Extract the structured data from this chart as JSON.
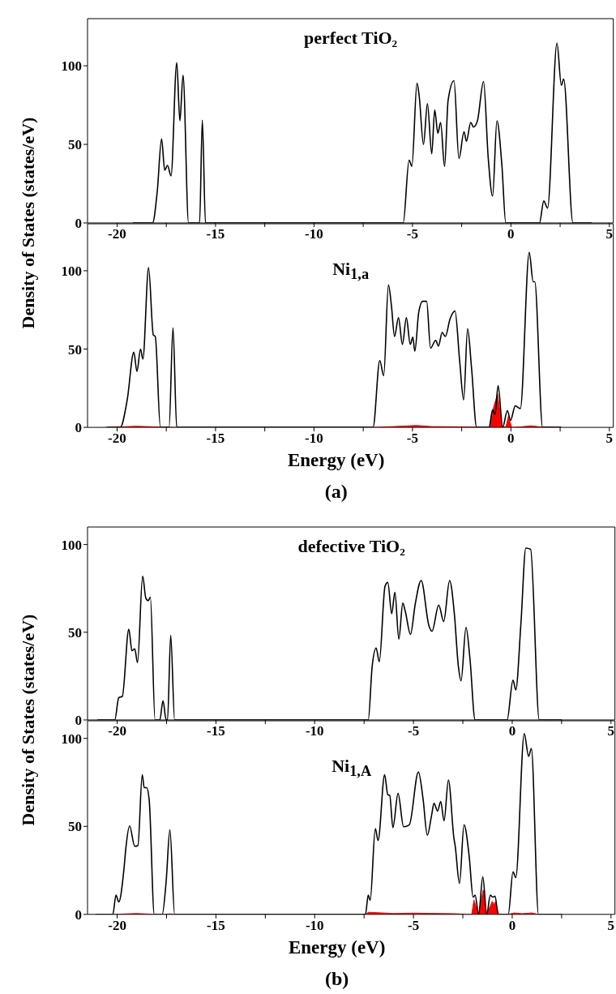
{
  "chart_data": [
    {
      "type": "line",
      "title": "perfect TiO₂",
      "ylabel": "Density of States (states/eV)",
      "xlim": [
        -21.5,
        5.2
      ],
      "xticks": [
        -20,
        {
          "value": -17.5,
          "label": null
        },
        -15,
        {
          "value": -12.5,
          "label": null
        },
        -10,
        {
          "value": -7.5,
          "label": null
        },
        -5,
        {
          "value": -2.5,
          "label": null
        },
        0,
        {
          "value": 2.5,
          "label": null
        },
        5
      ],
      "ylim": [
        0,
        130
      ],
      "yticks": [
        0,
        50,
        100
      ],
      "series": [
        {
          "type": "line",
          "color": "#000000",
          "x": [
            -19.2,
            -18.2,
            -17.96,
            -17.74,
            -17.58,
            -17.44,
            -17.26,
            -16.97,
            -16.81,
            -16.65,
            -16.37,
            -15.81,
            -15.67,
            -15.51,
            -5.47,
            -5.17,
            -5.03,
            -4.77,
            -4.66,
            -4.44,
            -4.24,
            -4.02,
            -3.87,
            -3.71,
            -3.57,
            -3.37,
            -3.19,
            -2.89,
            -2.64,
            -2.38,
            -2.26,
            -2.04,
            -1.9,
            -1.7,
            -1.39,
            -1.15,
            -0.93,
            -0.71,
            -0.46,
            -0.26,
            1.45,
            1.67,
            1.86,
            2.34,
            2.56,
            2.68,
            3.15,
            4.1
          ],
          "values": [
            0,
            0,
            20,
            53.5,
            33.6,
            36.6,
            30,
            102,
            65,
            94,
            0,
            0,
            65.4,
            0,
            0,
            40,
            36,
            89,
            81,
            50,
            76,
            44,
            72,
            57,
            64,
            36,
            78,
            90.5,
            41,
            58,
            52,
            64,
            61,
            65,
            90,
            41,
            17,
            65,
            37,
            0,
            0,
            14,
            9.5,
            114.4,
            87.6,
            91.5,
            0,
            0
          ]
        }
      ]
    },
    {
      "type": "line",
      "title": "Ni$_{1,a}$",
      "xlabel": "Energy (eV)",
      "annotations": [
        "(a)"
      ],
      "xlim": [
        -21.5,
        5.2
      ],
      "xticks": [
        -20,
        {
          "value": -17.5,
          "label": null
        },
        -15,
        {
          "value": -12.5,
          "label": null
        },
        -10,
        {
          "value": -7.5,
          "label": null
        },
        -5,
        {
          "value": -2.5,
          "label": null
        },
        0,
        {
          "value": 2.5,
          "label": null
        },
        5
      ],
      "ylim": [
        0,
        130
      ],
      "yticks": [
        0,
        50,
        100
      ],
      "series": [
        {
          "type": "area",
          "color": "#ff0000",
          "x": [
            -20.6,
            -19.0,
            -18.0,
            -17.0,
            -7.0,
            -6.0,
            -4.8,
            -4.0,
            -2.0,
            -1.09,
            -0.98,
            -0.9,
            -0.68,
            -0.5,
            -0.43,
            -0.25,
            -0.13,
            0.04,
            0.5,
            1.0,
            1.5,
            2.5
          ],
          "values": [
            0,
            0.7,
            0.3,
            0,
            0,
            0.5,
            1.2,
            0.5,
            0.3,
            0,
            7.9,
            12,
            21.3,
            5,
            0,
            0.5,
            7,
            0,
            0.3,
            1,
            0.3,
            0
          ]
        },
        {
          "type": "line",
          "color": "#000000",
          "x": [
            -20.5,
            -19.84,
            -19.48,
            -19.15,
            -18.99,
            -18.81,
            -18.69,
            -18.4,
            -18.16,
            -18.06,
            -17.8,
            -17.36,
            -17.16,
            -16.97,
            -7.0,
            -6.66,
            -6.46,
            -6.22,
            -6.07,
            -5.91,
            -5.71,
            -5.51,
            -5.31,
            -5.11,
            -4.98,
            -4.88,
            -4.68,
            -4.48,
            -4.28,
            -4.08,
            -3.82,
            -3.68,
            -3.49,
            -3.33,
            -3.09,
            -2.84,
            -2.6,
            -2.4,
            -2.2,
            -2.0,
            -1.74,
            -1.11,
            -0.93,
            -0.81,
            -0.65,
            -0.42,
            -0.18,
            -0.02,
            0.22,
            0.48,
            0.93,
            1.13,
            1.21,
            1.61,
            2.56
          ],
          "values": [
            0,
            0,
            18,
            48,
            35.7,
            50,
            43.6,
            102,
            59,
            58,
            0,
            0,
            63.6,
            0,
            0,
            42.6,
            33,
            91,
            78,
            58,
            70,
            53,
            70,
            53,
            57.6,
            48.6,
            73.6,
            80.5,
            80.5,
            50.6,
            55.6,
            51.9,
            60.6,
            58,
            69.3,
            74.3,
            42,
            17.5,
            63,
            38,
            0,
            0,
            11.2,
            8.2,
            26.7,
            0,
            10.7,
            4.5,
            13.7,
            12,
            111.7,
            93,
            93,
            0,
            0
          ]
        }
      ]
    },
    {
      "type": "line",
      "title": "defective TiO₂",
      "ylabel": "Density of States (states/eV)",
      "xlim": [
        -21.5,
        5.2
      ],
      "xticks": [
        -20,
        {
          "value": -17.5,
          "label": null
        },
        -15,
        {
          "value": -12.5,
          "label": null
        },
        -10,
        {
          "value": -7.5,
          "label": null
        },
        -5,
        {
          "value": -2.5,
          "label": null
        },
        0,
        {
          "value": 2.5,
          "label": null
        },
        5
      ],
      "ylim": [
        0,
        110
      ],
      "yticks": [
        0,
        50,
        100
      ],
      "series": [
        {
          "type": "line",
          "color": "#000000",
          "x": [
            -21.0,
            -20.12,
            -19.92,
            -19.74,
            -19.41,
            -19.25,
            -19.11,
            -18.97,
            -18.71,
            -18.55,
            -18.43,
            -18.32,
            -18.08,
            -17.84,
            -17.68,
            -17.52,
            -17.45,
            -17.29,
            -17.09,
            -7.29,
            -7.09,
            -6.89,
            -6.73,
            -6.44,
            -6.3,
            -6.1,
            -5.94,
            -5.74,
            -5.54,
            -5.41,
            -5.15,
            -4.91,
            -4.61,
            -4.22,
            -4.06,
            -3.72,
            -3.47,
            -3.17,
            -2.93,
            -2.73,
            -2.59,
            -2.34,
            -2.14,
            -1.88,
            -0.26,
            0.04,
            0.18,
            0.44,
            0.69,
            0.93,
            1.37,
            2.51
          ],
          "values": [
            0,
            0,
            12.7,
            13.4,
            51.7,
            39.4,
            40.5,
            32.7,
            82,
            69.5,
            68,
            70,
            0,
            0,
            11,
            0,
            0,
            48.3,
            0,
            0,
            30.5,
            41,
            33.2,
            76.2,
            78.4,
            60.6,
            72.8,
            46.1,
            66.6,
            61.7,
            48.8,
            66.1,
            79.5,
            53.9,
            50.6,
            65.5,
            56.1,
            79.5,
            60.6,
            31,
            22.3,
            52.8,
            35,
            0,
            0,
            22.7,
            17.1,
            55,
            98,
            97.3,
            0,
            0
          ]
        }
      ]
    },
    {
      "type": "line",
      "title": "Ni$_{1,A}$",
      "xlabel": "Energy (eV)",
      "annotations": [
        "(b)"
      ],
      "xlim": [
        -21.5,
        5.2
      ],
      "xticks": [
        -20,
        {
          "value": -17.5,
          "label": null
        },
        -15,
        {
          "value": -12.5,
          "label": null
        },
        -10,
        {
          "value": -7.5,
          "label": null
        },
        -5,
        {
          "value": -2.5,
          "label": null
        },
        0,
        {
          "value": 2.5,
          "label": null
        },
        5
      ],
      "ylim": [
        0,
        110
      ],
      "yticks": [
        0,
        50,
        100
      ],
      "series": [
        {
          "type": "area",
          "color": "#ff0000",
          "x": [
            -20.2,
            -19.0,
            -18.1,
            -17.7,
            -17.3,
            -17.1,
            -7.4,
            -7.3,
            -6.0,
            -5.0,
            -3.0,
            -2.05,
            -1.94,
            -1.71,
            -1.47,
            -1.3,
            -1.01,
            -0.92,
            -0.86,
            -0.69,
            -0.2,
            0.1,
            0.5,
            1.0,
            1.3
          ],
          "values": [
            0,
            0.5,
            0,
            0,
            0.3,
            0,
            0,
            1.2,
            0.5,
            0.7,
            0.4,
            0,
            8.2,
            0,
            13.8,
            0,
            7.4,
            5.5,
            7,
            0,
            0,
            0.8,
            0.4,
            0.8,
            0
          ]
        },
        {
          "type": "line",
          "color": "#000000",
          "x": [
            -21.09,
            -20.22,
            -20.06,
            -19.92,
            -19.66,
            -19.56,
            -19.37,
            -19.11,
            -18.95,
            -18.73,
            -18.63,
            -18.51,
            -18.38,
            -18.12,
            -17.72,
            -17.52,
            -17.33,
            -17.09,
            -7.43,
            -7.29,
            -7.19,
            -6.93,
            -6.79,
            -6.46,
            -6.3,
            -6.2,
            -6.04,
            -5.78,
            -5.5,
            -5.21,
            -4.75,
            -4.51,
            -4.3,
            -4.08,
            -3.96,
            -3.78,
            -3.62,
            -3.45,
            -3.23,
            -2.95,
            -2.89,
            -2.67,
            -2.44,
            -2.18,
            -1.98,
            -1.88,
            -1.7,
            -1.49,
            -1.29,
            -1.11,
            -0.99,
            -0.87,
            -0.71,
            -0.2,
            0.04,
            0.18,
            0.61,
            0.83,
            0.97,
            1.33,
            2.51
          ],
          "values": [
            0,
            0,
            10.9,
            7.1,
            25.3,
            37.6,
            50.2,
            38.7,
            39.1,
            79.3,
            72,
            72,
            65.3,
            0,
            0,
            18.7,
            48,
            0,
            0,
            10.9,
            8,
            48.7,
            42,
            79.3,
            68,
            67.6,
            49.3,
            68.7,
            49.8,
            50.9,
            80.9,
            65.3,
            44.9,
            56.4,
            63.1,
            58.7,
            64.2,
            53.1,
            76.4,
            43.1,
            39.1,
            17.6,
            50.9,
            33.1,
            9.8,
            10.9,
            0,
            21.3,
            0,
            10.9,
            9.8,
            10.4,
            0,
            0,
            24.2,
            20.9,
            102.7,
            89.8,
            94.2,
            0,
            0
          ]
        }
      ]
    }
  ]
}
